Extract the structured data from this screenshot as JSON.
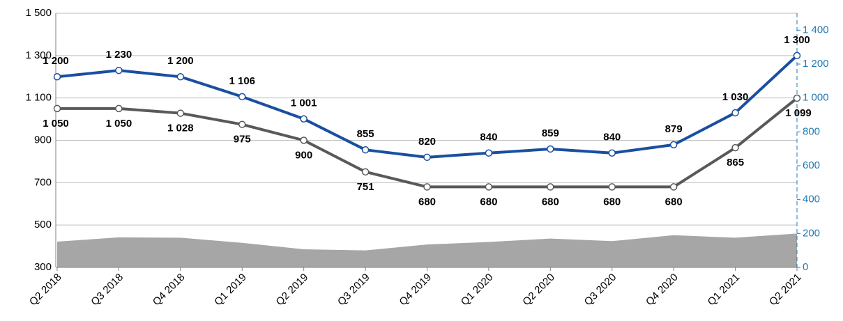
{
  "chart_data": {
    "type": "line",
    "categories": [
      "Q2 2018",
      "Q3 2018",
      "Q4 2018",
      "Q1 2019",
      "Q2 2019",
      "Q3 2019",
      "Q4 2019",
      "Q1 2020",
      "Q2 2020",
      "Q3 2020",
      "Q4 2020",
      "Q1 2021",
      "Q2 2021"
    ],
    "series": [
      {
        "color": "#1a4fa0",
        "values": [
          1200,
          1230,
          1200,
          1106,
          1001,
          855,
          820,
          840,
          859,
          840,
          879,
          1030,
          1300
        ],
        "value_labels": [
          "1 200",
          "1 230",
          "1 200",
          "1 106",
          "1 001",
          "855",
          "820",
          "840",
          "859",
          "840",
          "879",
          "1 030",
          "1 300"
        ]
      },
      {
        "color": "#595959",
        "values": [
          1050,
          1050,
          1028,
          975,
          900,
          751,
          680,
          680,
          680,
          680,
          680,
          865,
          1099
        ],
        "value_labels": [
          "1 050",
          "1 050",
          "1 028",
          "975",
          "900",
          "751",
          "680",
          "680",
          "680",
          "680",
          "680",
          "865",
          "1 099"
        ]
      },
      {
        "type": "area",
        "axis": "y2",
        "color": "#a6a6a6",
        "values": [
          152,
          177,
          175,
          145,
          107,
          100,
          135,
          150,
          170,
          155,
          190,
          175,
          200
        ]
      }
    ],
    "ylim": [
      300,
      1500
    ],
    "yticks": [
      300,
      500,
      700,
      900,
      {
        "value": 1100,
        "label": "1 100"
      },
      {
        "value": 1300,
        "label": "1 300"
      },
      {
        "value": 1500,
        "label": "1 500"
      }
    ],
    "y2lim": [
      0,
      1500
    ],
    "y2ticks": [
      0,
      200,
      400,
      600,
      800,
      {
        "value": 1000,
        "label": "1 000"
      },
      {
        "value": 1200,
        "label": "1 200"
      },
      {
        "value": 1400,
        "label": "1 400"
      }
    ],
    "grid": true
  }
}
